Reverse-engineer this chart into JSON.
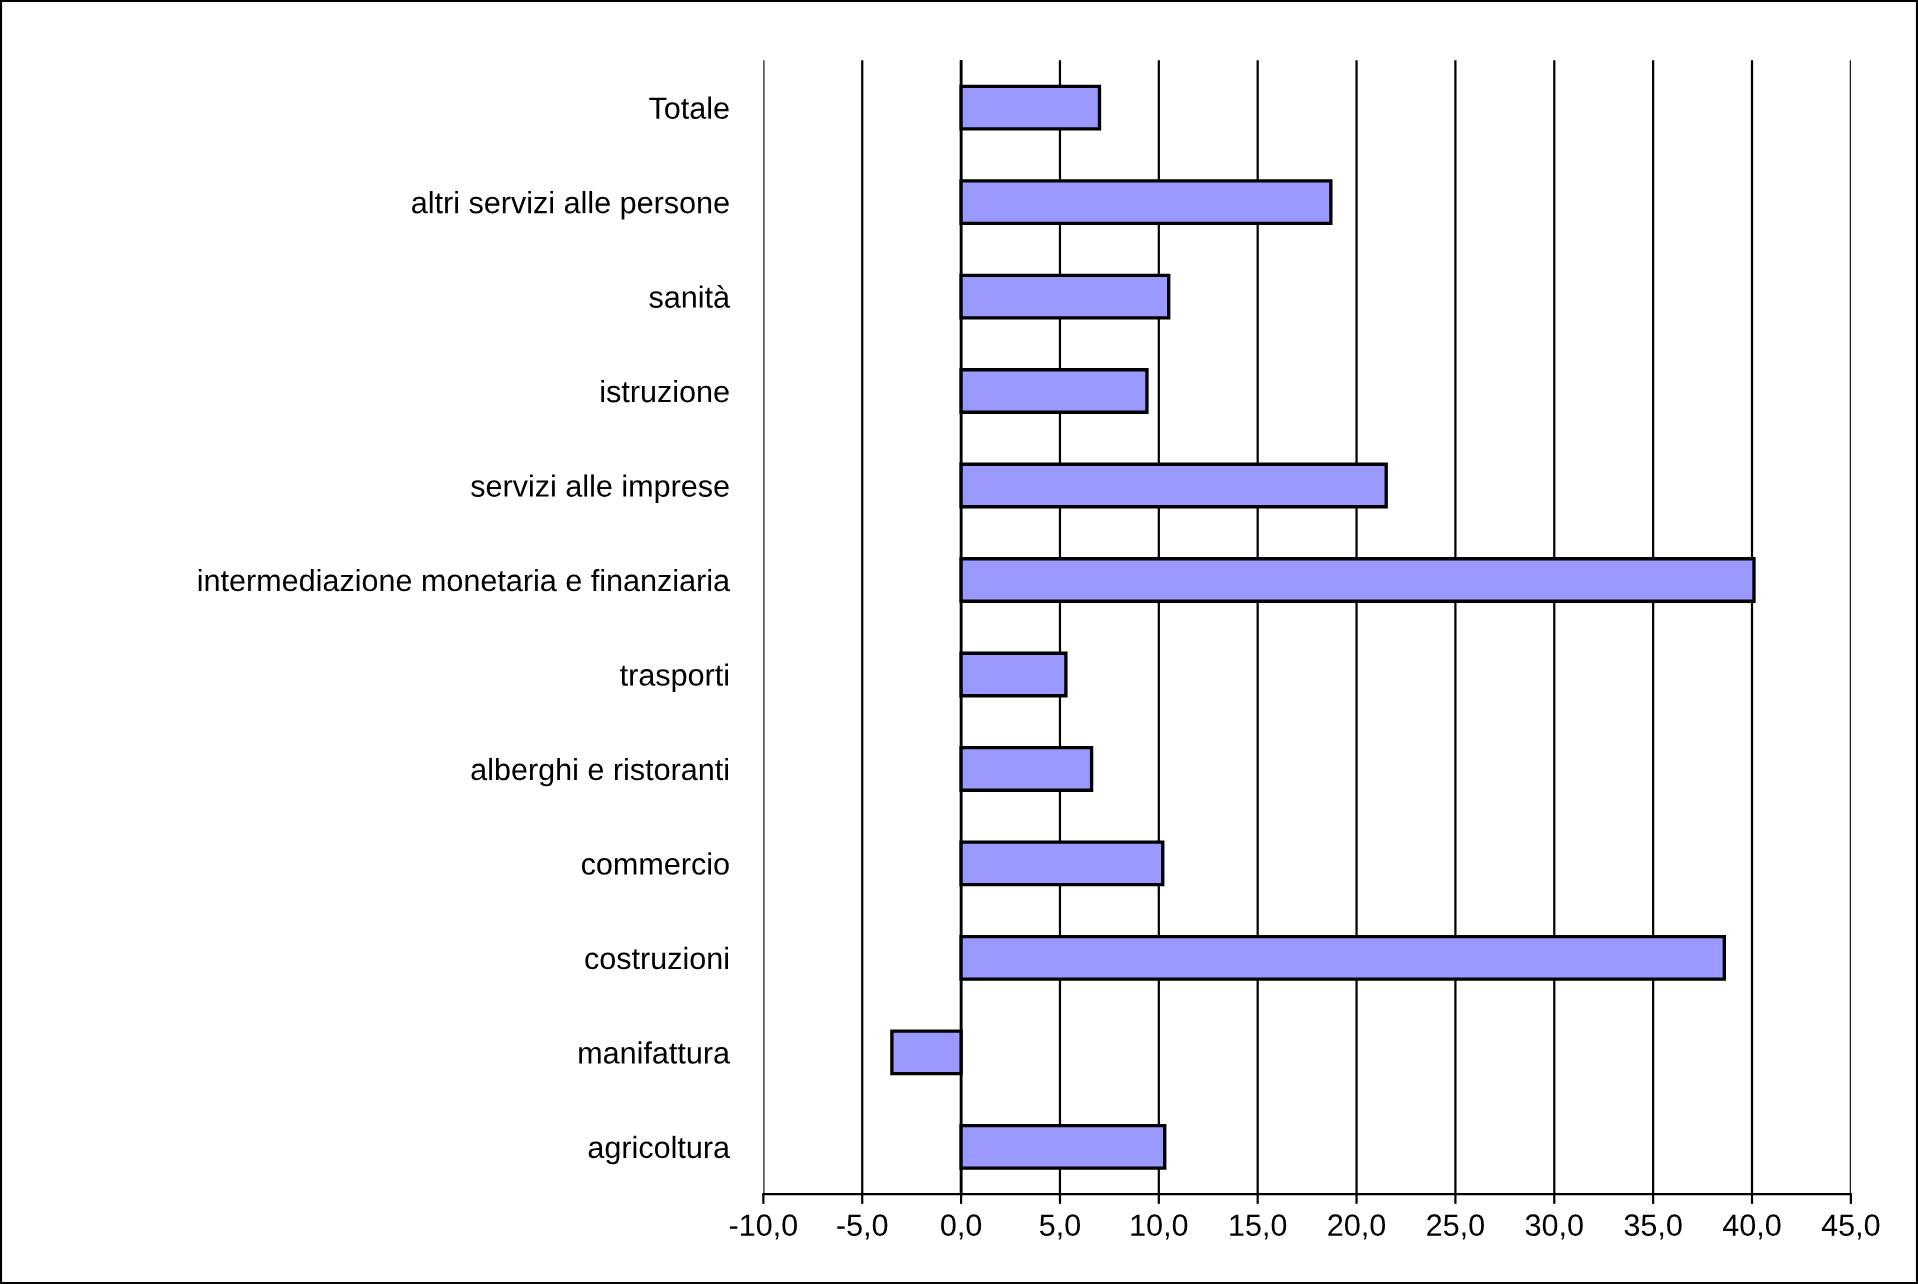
{
  "chart_data": {
    "type": "bar",
    "orientation": "horizontal",
    "categories": [
      "Totale",
      "altri servizi alle persone",
      "sanità",
      "istruzione",
      "servizi alle imprese",
      "intermediazione monetaria e finanziaria",
      "trasporti",
      "alberghi e ristoranti",
      "commercio",
      "costruzioni",
      "manifattura",
      "agricoltura"
    ],
    "values": [
      7.0,
      18.7,
      10.5,
      9.4,
      21.5,
      40.1,
      5.3,
      6.6,
      10.2,
      38.6,
      -3.5,
      10.3
    ],
    "color": "#9999ff",
    "xlim": [
      -10,
      45
    ],
    "xticks": [
      {
        "value": -10,
        "label": "-10,0"
      },
      {
        "value": -5,
        "label": "-5,0"
      },
      {
        "value": 0,
        "label": "0,0"
      },
      {
        "value": 5,
        "label": "5,0"
      },
      {
        "value": 10,
        "label": "10,0"
      },
      {
        "value": 15,
        "label": "15,0"
      },
      {
        "value": 20,
        "label": "20,0"
      },
      {
        "value": 25,
        "label": "25,0"
      },
      {
        "value": 30,
        "label": "30,0"
      },
      {
        "value": 35,
        "label": "35,0"
      },
      {
        "value": 40,
        "label": "40,0"
      },
      {
        "value": 45,
        "label": "45,0"
      }
    ],
    "grid": "x"
  }
}
